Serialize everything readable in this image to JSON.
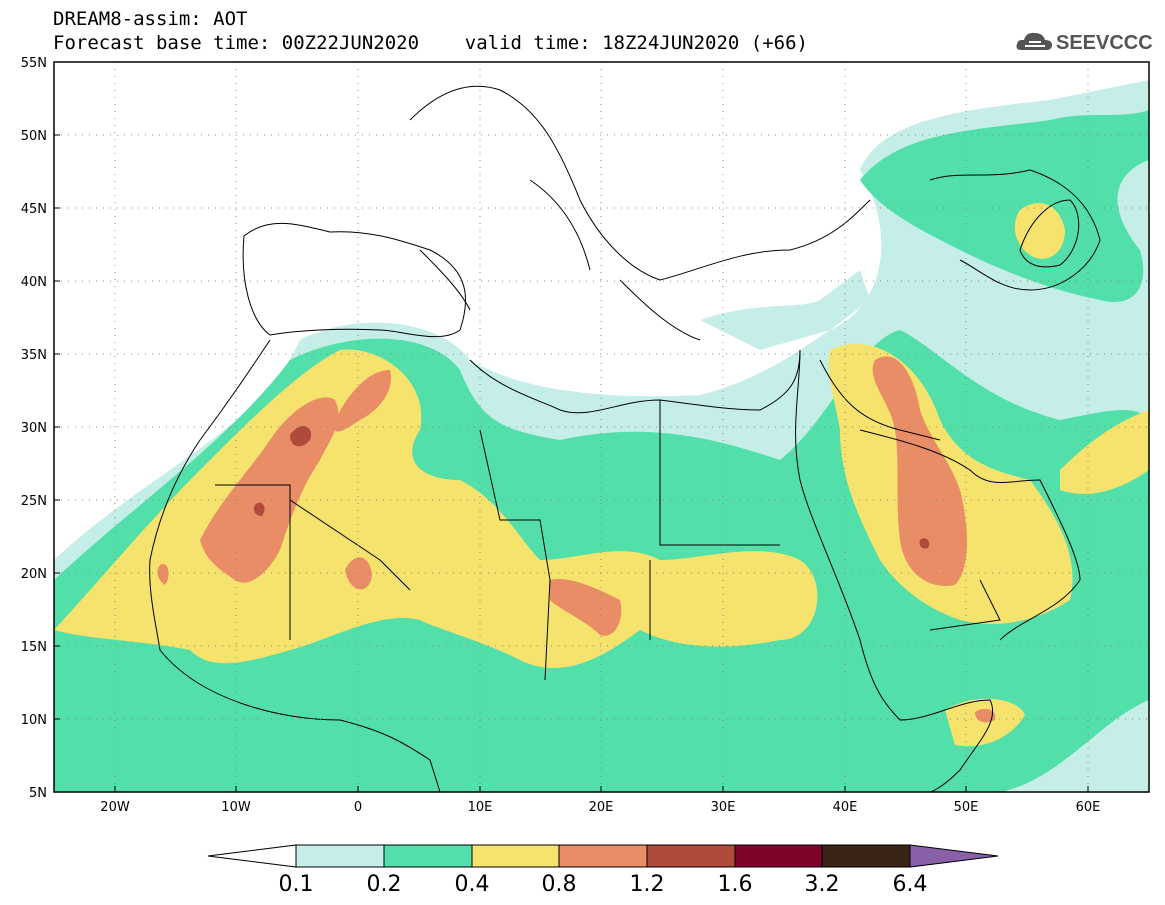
{
  "header": {
    "line1": "DREAM8-assim: AOT",
    "line2": "Forecast base time: 00Z22JUN2020    valid time: 18Z24JUN2020 (+66)"
  },
  "logo": {
    "text": "SEEVCCC",
    "icon": "cloud-icon",
    "color": "#555555"
  },
  "map": {
    "lat_labels": [
      "55N",
      "50N",
      "45N",
      "40N",
      "35N",
      "30N",
      "25N",
      "20N",
      "15N",
      "10N",
      "5N"
    ],
    "lon_labels": [
      "20W",
      "10W",
      "0",
      "10E",
      "20E",
      "30E",
      "40E",
      "50E",
      "60E"
    ],
    "lat_range": [
      5,
      55
    ],
    "lon_range": [
      -25,
      65
    ],
    "grid": "dotted"
  },
  "colorbar": {
    "thresholds": [
      "0.1",
      "0.2",
      "0.4",
      "0.8",
      "1.2",
      "1.6",
      "3.2",
      "6.4"
    ],
    "colors": [
      "#ffffff",
      "#c5eee8",
      "#52dfa9",
      "#f6e36e",
      "#e98d67",
      "#b04a3a",
      "#7d0428",
      "#3a2416",
      "#8a60a8"
    ]
  }
}
